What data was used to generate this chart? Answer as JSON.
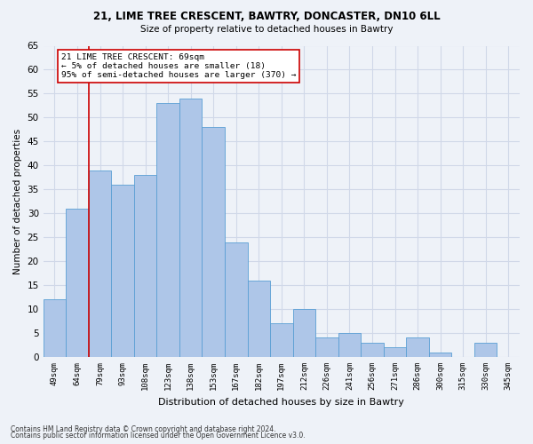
{
  "title1": "21, LIME TREE CRESCENT, BAWTRY, DONCASTER, DN10 6LL",
  "title2": "Size of property relative to detached houses in Bawtry",
  "xlabel": "Distribution of detached houses by size in Bawtry",
  "ylabel": "Number of detached properties",
  "categories": [
    "49sqm",
    "64sqm",
    "79sqm",
    "93sqm",
    "108sqm",
    "123sqm",
    "138sqm",
    "153sqm",
    "167sqm",
    "182sqm",
    "197sqm",
    "212sqm",
    "226sqm",
    "241sqm",
    "256sqm",
    "271sqm",
    "286sqm",
    "300sqm",
    "315sqm",
    "330sqm",
    "345sqm"
  ],
  "values": [
    12,
    31,
    39,
    36,
    38,
    53,
    54,
    48,
    24,
    16,
    7,
    10,
    4,
    5,
    3,
    2,
    4,
    1,
    0,
    3,
    0
  ],
  "bar_color": "#aec6e8",
  "bar_edge_color": "#5a9fd4",
  "ylim": [
    0,
    65
  ],
  "yticks": [
    0,
    5,
    10,
    15,
    20,
    25,
    30,
    35,
    40,
    45,
    50,
    55,
    60,
    65
  ],
  "grid_color": "#d0d8e8",
  "annotation_line1": "21 LIME TREE CRESCENT: 69sqm",
  "annotation_line2": "← 5% of detached houses are smaller (18)",
  "annotation_line3": "95% of semi-detached houses are larger (370) →",
  "annotation_box_color": "#ffffff",
  "annotation_box_edge_color": "#cc0000",
  "red_line_x": 1.5,
  "footnote1": "Contains HM Land Registry data © Crown copyright and database right 2024.",
  "footnote2": "Contains public sector information licensed under the Open Government Licence v3.0.",
  "background_color": "#eef2f8"
}
